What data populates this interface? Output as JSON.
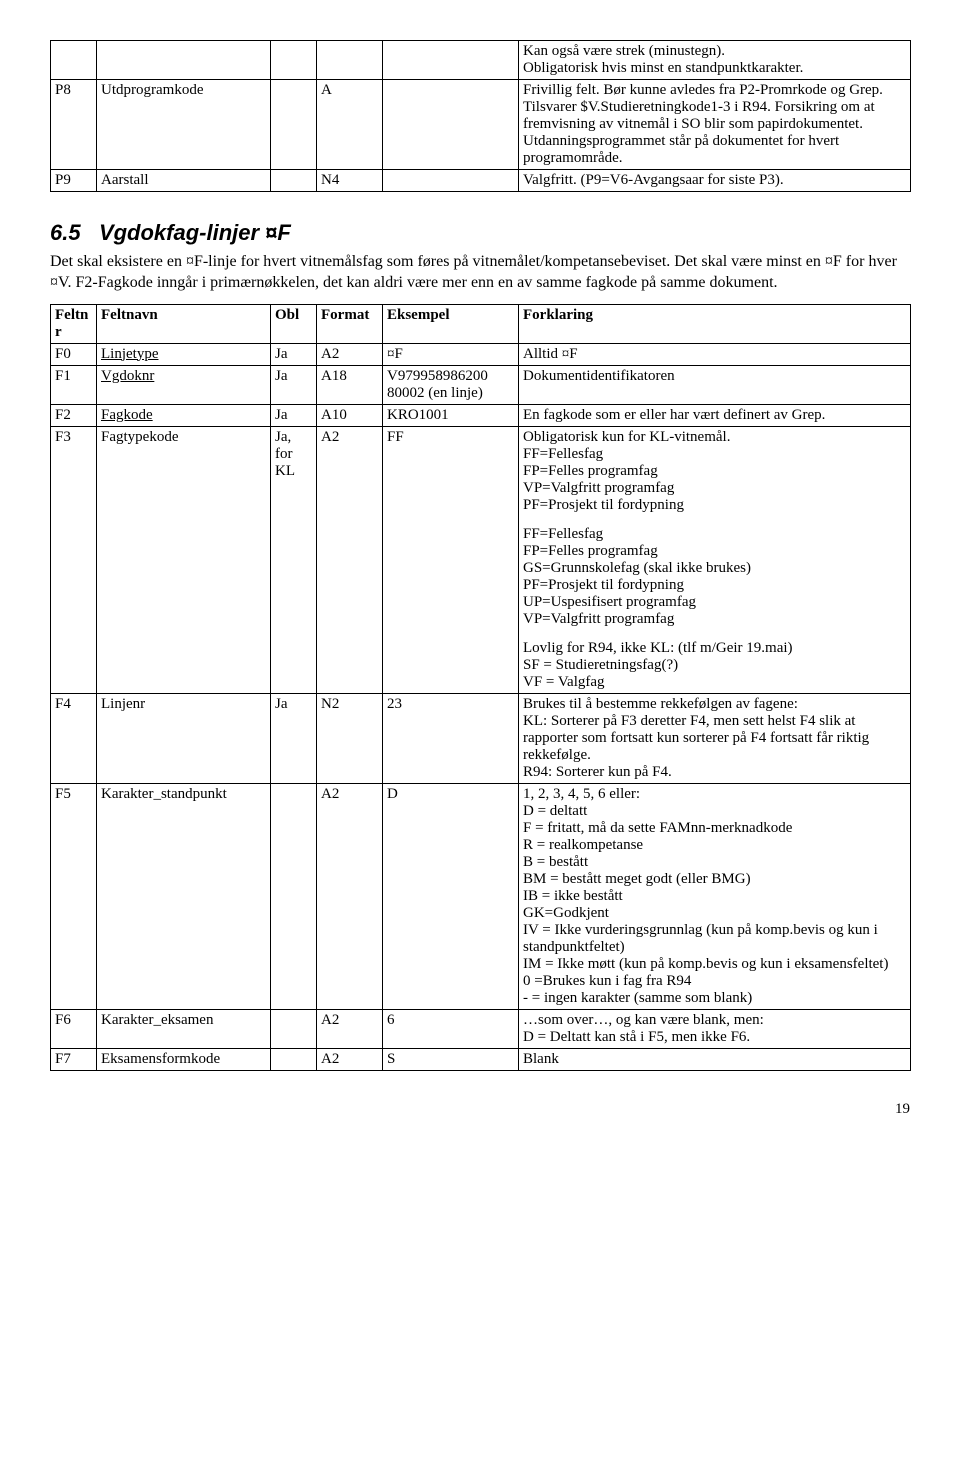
{
  "table1": {
    "rows": [
      {
        "feltnr": "",
        "feltnavn": "",
        "obl": "",
        "format": "",
        "eksempel": "",
        "forklaring": "Kan også være strek (minustegn).\nObligatorisk hvis minst en standpunktkarakter."
      },
      {
        "feltnr": "P8",
        "feltnavn": "Utdprogramkode",
        "obl": "",
        "format": "A",
        "eksempel": "",
        "forklaring": "Frivillig felt. Bør kunne avledes fra P2-Promrkode og Grep. Tilsvarer $V.Studieretningkode1-3 i R94. Forsikring om at fremvisning av vitnemål i SO blir som papirdokumentet. Utdanningsprogrammet står på dokumentet for hvert programområde."
      },
      {
        "feltnr": "P9",
        "feltnavn": "Aarstall",
        "obl": "",
        "format": "N4",
        "eksempel": "",
        "forklaring": "Valgfritt. (P9=V6-Avgangsaar for siste P3)."
      }
    ]
  },
  "section": {
    "number": "6.5",
    "title": "Vgdokfag-linjer ¤F",
    "body": "Det skal eksistere en ¤F-linje for hvert vitnemålsfag som føres på vitnemålet/kompetansebeviset. Det skal være minst en ¤F for hver ¤V. F2-Fagkode inngår i primærnøkkelen, det kan aldri være mer enn en av samme fagkode på samme dokument."
  },
  "table2": {
    "headers": {
      "feltnr": "Feltnr",
      "feltnavn": "Feltnavn",
      "obl": "Obl",
      "format": "Format",
      "eksempel": "Eksempel",
      "forklaring": "Forklaring"
    },
    "rows": [
      {
        "feltnr": "F0",
        "feltnavn": "Linjetype",
        "feltnavn_underline": true,
        "obl": "Ja",
        "format": "A2",
        "eksempel": "¤F",
        "forklaring": "Alltid ¤F"
      },
      {
        "feltnr": "F1",
        "feltnavn": "Vgdoknr",
        "feltnavn_underline": true,
        "obl": "Ja",
        "format": "A18",
        "eksempel": "V979958986200\n80002 (en linje)",
        "forklaring": "Dokumentidentifikatoren"
      },
      {
        "feltnr": "F2",
        "feltnavn": "Fagkode",
        "feltnavn_underline": true,
        "obl": "Ja",
        "format": "A10",
        "eksempel": "KRO1001",
        "forklaring": "En fagkode som er eller har vært definert av Grep."
      },
      {
        "feltnr": "F3",
        "feltnavn": "Fagtypekode",
        "obl": "Ja, for KL",
        "format": "A2",
        "eksempel": "FF",
        "forklaring_blocks": [
          "Obligatorisk kun for KL-vitnemål.\nFF=Fellesfag\nFP=Felles programfag\nVP=Valgfritt programfag\nPF=Prosjekt til fordypning",
          "FF=Fellesfag\nFP=Felles programfag\nGS=Grunnskolefag (skal ikke brukes)\nPF=Prosjekt til fordypning\nUP=Uspesifisert programfag\nVP=Valgfritt programfag",
          "Lovlig for R94, ikke KL: (tlf m/Geir 19.mai)\nSF = Studieretningsfag(?)\nVF = Valgfag"
        ]
      },
      {
        "feltnr": "F4",
        "feltnavn": "Linjenr",
        "obl": "Ja",
        "format": "N2",
        "eksempel": "23",
        "forklaring": "Brukes til å bestemme rekkefølgen av fagene:\nKL: Sorterer på F3 deretter F4, men sett helst F4 slik at rapporter som fortsatt kun sorterer på F4 fortsatt får riktig rekkefølge.\nR94: Sorterer kun på F4."
      },
      {
        "feltnr": "F5",
        "feltnavn": "Karakter_standpunkt",
        "obl": "",
        "format": "A2",
        "eksempel": "D",
        "forklaring": "1, 2, 3, 4, 5, 6 eller:\nD = deltatt\nF = fritatt, må da sette FAMnn-merknadkode\nR = realkompetanse\nB = bestått\nBM = bestått meget godt (eller BMG)\nIB = ikke bestått\nGK=Godkjent\nIV = Ikke vurderingsgrunnlag (kun på komp.bevis og kun i standpunktfeltet)\nIM = Ikke møtt (kun på komp.bevis og kun i eksamensfeltet)\n0 =Brukes kun i fag fra R94\n- = ingen karakter (samme som blank)"
      },
      {
        "feltnr": "F6",
        "feltnavn": "Karakter_eksamen",
        "obl": "",
        "format": "A2",
        "eksempel": "6",
        "forklaring": "…som over…, og kan være blank, men:\nD = Deltatt kan stå i F5, men ikke F6."
      },
      {
        "feltnr": "F7",
        "feltnavn": "Eksamensformkode",
        "obl": "",
        "format": "A2",
        "eksempel": "S",
        "forklaring": "Blank"
      }
    ]
  },
  "pageNumber": "19"
}
